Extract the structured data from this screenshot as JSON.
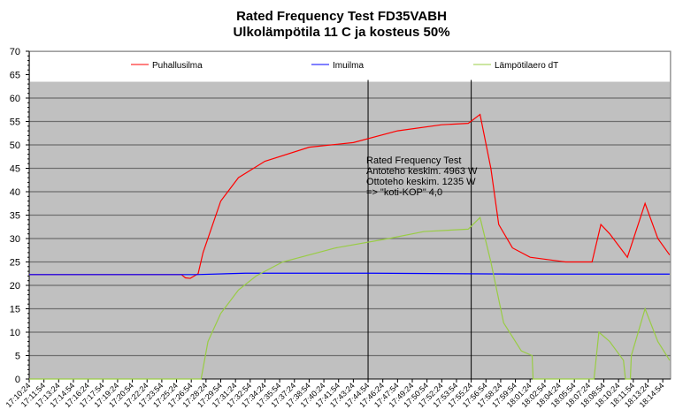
{
  "chart_data": {
    "type": "line",
    "title": [
      "Rated Frequency Test FD35VABH",
      "Ulkolämpötila 11 C ja kosteus 50%"
    ],
    "xlabel": "",
    "ylabel": "",
    "ylim": [
      0,
      70
    ],
    "yticks": [
      0,
      5,
      10,
      15,
      20,
      25,
      30,
      35,
      40,
      45,
      50,
      55,
      60,
      65,
      70
    ],
    "x_unit": "minutes since 17:10:24",
    "xlim": [
      0,
      65.3
    ],
    "xtick_step_minutes": 1.5,
    "xtick_labels": [
      "17:10:24",
      "17:11:54",
      "17:13:24",
      "17:14:54",
      "17:16:24",
      "17:17:54",
      "17:19:24",
      "17:20:54",
      "17:22:24",
      "17:23:54",
      "17:25:24",
      "17:26:54",
      "17:28:24",
      "17:29:54",
      "17:31:24",
      "17:32:54",
      "17:34:24",
      "17:35:54",
      "17:37:24",
      "17:38:54",
      "17:40:24",
      "17:41:54",
      "17:43:24",
      "17:44:54",
      "17:46:24",
      "17:47:54",
      "17:49:24",
      "17:50:54",
      "17:52:24",
      "17:53:54",
      "17:55:24",
      "17:56:54",
      "17:58:24",
      "17:59:54",
      "18:01:24",
      "18:02:54",
      "18:04:24",
      "18:05:54",
      "18:07:24",
      "18:08:54",
      "18:10:24",
      "18:11:54",
      "18:13:24",
      "18:14:54"
    ],
    "grid": true,
    "legend_placement": "top",
    "vlines": [
      34.5,
      45
    ],
    "annotation": {
      "x": 34.5,
      "y": 46,
      "lines": [
        "Rated Frequency Test",
        "Antoteho keskim. 4963 W",
        "Ottoteho keskim. 1235 W",
        "=> \"koti-KOP\"  4,0"
      ]
    },
    "series": [
      {
        "name": "Puhallusilma",
        "color": "#ff0000",
        "points": [
          [
            0,
            22.3
          ],
          [
            15.5,
            22.3
          ],
          [
            15.9,
            21.6
          ],
          [
            16.4,
            21.5
          ],
          [
            17.2,
            22.5
          ],
          [
            17.7,
            27
          ],
          [
            19.5,
            38
          ],
          [
            21.3,
            43
          ],
          [
            24,
            46.5
          ],
          [
            28.5,
            49.5
          ],
          [
            33,
            50.5
          ],
          [
            37.5,
            53
          ],
          [
            42,
            54.3
          ],
          [
            44.7,
            54.6
          ],
          [
            45.9,
            56.5
          ],
          [
            47,
            45
          ],
          [
            47.8,
            33
          ],
          [
            49.2,
            28
          ],
          [
            51,
            26
          ],
          [
            54.6,
            25
          ],
          [
            57.3,
            25
          ],
          [
            58.2,
            33
          ],
          [
            59.1,
            31
          ],
          [
            60.9,
            26
          ],
          [
            62.7,
            37.5
          ],
          [
            64,
            30
          ],
          [
            65.2,
            26.5
          ]
        ]
      },
      {
        "name": "Imuilma",
        "color": "#0000ff",
        "points": [
          [
            0,
            22.3
          ],
          [
            17,
            22.3
          ],
          [
            22,
            22.6
          ],
          [
            35,
            22.6
          ],
          [
            50,
            22.4
          ],
          [
            65.2,
            22.4
          ]
        ]
      },
      {
        "name": "Lämpötilaero dT",
        "color": "#99cc44",
        "points": [
          [
            0,
            0
          ],
          [
            17.5,
            0
          ],
          [
            18.2,
            8
          ],
          [
            19.5,
            14
          ],
          [
            21.3,
            19
          ],
          [
            23.1,
            22
          ],
          [
            25.8,
            25
          ],
          [
            31.2,
            28
          ],
          [
            36.6,
            30
          ],
          [
            40.2,
            31.5
          ],
          [
            44.7,
            32
          ],
          [
            45.9,
            34.5
          ],
          [
            47,
            25
          ],
          [
            48.3,
            12
          ],
          [
            50.1,
            6
          ],
          [
            51.2,
            5
          ],
          [
            51.3,
            0
          ],
          [
            57.5,
            0
          ],
          [
            58,
            10
          ],
          [
            59.1,
            8
          ],
          [
            60.5,
            4
          ],
          [
            60.7,
            0
          ],
          [
            61.2,
            0
          ],
          [
            61.3,
            5
          ],
          [
            62.7,
            15
          ],
          [
            64,
            8
          ],
          [
            65.2,
            4
          ]
        ]
      }
    ]
  }
}
